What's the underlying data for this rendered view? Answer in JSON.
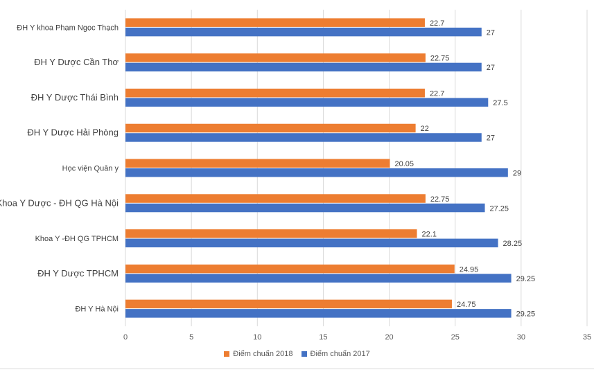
{
  "chart_data": {
    "type": "bar",
    "orientation": "horizontal",
    "categories": [
      "ĐH Y khoa Phạm Ngọc Thạch",
      "ĐH Y Dược Cần Thơ",
      "ĐH Y Dược Thái Bình",
      "ĐH Y Dược Hải Phòng",
      "Học viện Quân y",
      "Khoa Y Dược - ĐH QG Hà Nội",
      "Khoa Y -ĐH QG TPHCM",
      "ĐH Y Dược TPHCM",
      "ĐH Y Hà Nội"
    ],
    "series": [
      {
        "name": "Điểm chuẩn 2018",
        "color": "#ED7D31",
        "values": [
          22.7,
          22.75,
          22.7,
          22,
          20.05,
          22.75,
          22.1,
          24.95,
          24.75
        ]
      },
      {
        "name": "Điểm chuẩn 2017",
        "color": "#4472C4",
        "values": [
          27,
          27,
          27.5,
          27,
          29,
          27.25,
          28.25,
          29.25,
          29.25
        ]
      }
    ],
    "xlim": [
      0,
      35
    ],
    "xticks": [
      "0",
      "5",
      "10",
      "15",
      "20",
      "25",
      "30",
      "35"
    ],
    "grid": true,
    "legend_position": "bottom",
    "title": "",
    "xlabel": "",
    "ylabel": ""
  }
}
